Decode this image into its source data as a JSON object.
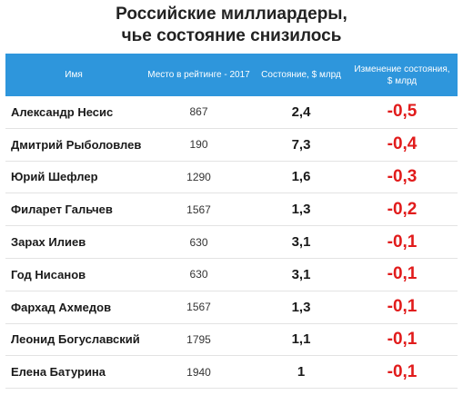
{
  "title_line1": "Российские миллиардеры,",
  "title_line2": "чье состояние снизилось",
  "colors": {
    "header_bg": "#2e96dc",
    "change_text": "#e11b1b"
  },
  "chart_data": {
    "type": "table",
    "columns": [
      "Имя",
      "Место в рейтинге  - 2017",
      "Состояние, $ млрд",
      "Изменение состояния, $ млрд"
    ],
    "rows": [
      {
        "name": "Александр Несис",
        "rank": "867",
        "worth": "2,4",
        "change": "-0,5"
      },
      {
        "name": "Дмитрий Рыболовлев",
        "rank": "190",
        "worth": "7,3",
        "change": "-0,4"
      },
      {
        "name": "Юрий Шефлер",
        "rank": "1290",
        "worth": "1,6",
        "change": "-0,3"
      },
      {
        "name": "Филарет Гальчев",
        "rank": "1567",
        "worth": "1,3",
        "change": "-0,2"
      },
      {
        "name": "Зарах Илиев",
        "rank": "630",
        "worth": "3,1",
        "change": "-0,1"
      },
      {
        "name": "Год Нисанов",
        "rank": "630",
        "worth": "3,1",
        "change": "-0,1"
      },
      {
        "name": "Фархад Ахмедов",
        "rank": "1567",
        "worth": "1,3",
        "change": "-0,1"
      },
      {
        "name": "Леонид Богуславский",
        "rank": "1795",
        "worth": "1,1",
        "change": "-0,1"
      },
      {
        "name": "Елена Батурина",
        "rank": "1940",
        "worth": "1",
        "change": "-0,1"
      }
    ]
  }
}
